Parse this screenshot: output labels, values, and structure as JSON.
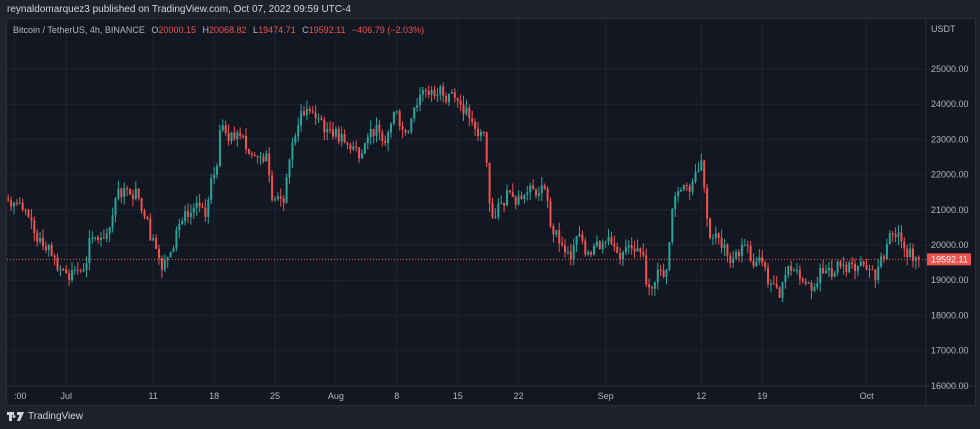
{
  "header": {
    "published": "reynaldomarquez3 published on TradingView.com, Oct 07, 2022 09:59 UTC-4"
  },
  "legend": {
    "symbol": "Bitcoin / TetherUS, 4h, BINANCE",
    "o_label": "O",
    "o": "20000.15",
    "h_label": "H",
    "h": "20068.82",
    "l_label": "L",
    "l": "19474.71",
    "c_label": "C",
    "c": "19592.11",
    "change": "−406.79 (−2.03%)"
  },
  "price_axis": {
    "currency": "USDT",
    "ticks": [
      "16000.00",
      "17000.00",
      "18000.00",
      "19000.00",
      "20000.00",
      "21000.00",
      "22000.00",
      "23000.00",
      "24000.00",
      "25000.00"
    ],
    "last_price": "19592.11"
  },
  "time_axis": {
    "labels": [
      {
        "day": 0,
        "text": ":00"
      },
      {
        "day": 6,
        "text": "Jul"
      },
      {
        "day": 16,
        "text": "11"
      },
      {
        "day": 23,
        "text": "18"
      },
      {
        "day": 30,
        "text": "25"
      },
      {
        "day": 37,
        "text": "Aug"
      },
      {
        "day": 44,
        "text": "8"
      },
      {
        "day": 51,
        "text": "15"
      },
      {
        "day": 58,
        "text": "22"
      },
      {
        "day": 68,
        "text": "Sep"
      },
      {
        "day": 79,
        "text": "12"
      },
      {
        "day": 86,
        "text": "19"
      },
      {
        "day": 98,
        "text": "Oct"
      }
    ]
  },
  "colors": {
    "up": "#26a69a",
    "down": "#ef5350",
    "grid": "#1f2330",
    "axis_text": "#b2b5be"
  },
  "chart_data": {
    "type": "candlestick",
    "title": "Bitcoin / TetherUS, 4h, BINANCE",
    "ylim": [
      16000,
      25600
    ],
    "first_open": 21300,
    "daily_closes": [
      21200,
      21000,
      20700,
      20200,
      20000,
      19300,
      19200,
      19300,
      19300,
      20200,
      20200,
      20500,
      21600,
      21600,
      21600,
      20800,
      20200,
      19300,
      19800,
      20600,
      20800,
      21200,
      20800,
      22000,
      23400,
      23200,
      23100,
      22600,
      22500,
      22600,
      21300,
      21200,
      22900,
      23800,
      23800,
      23600,
      23300,
      23300,
      22900,
      22800,
      22600,
      23300,
      23200,
      23200,
      23800,
      23200,
      23900,
      24400,
      24400,
      24500,
      24300,
      24100,
      23900,
      23300,
      23200,
      20800,
      21200,
      21500,
      21400,
      21500,
      21400,
      21600,
      20300,
      20000,
      19600,
      20300,
      19800,
      20100,
      20100,
      19950,
      19800,
      19900,
      19800,
      18800,
      19300,
      19300,
      21400,
      21700,
      21800,
      22400,
      20200,
      20200,
      19700,
      19800,
      20000,
      19400,
      19500,
      18900,
      18500,
      19400,
      19300,
      18900,
      18800,
      19200,
      19100,
      19400,
      19500,
      19400,
      19300,
      19000,
      19600,
      20300,
      20100,
      19900,
      19592.11
    ]
  }
}
